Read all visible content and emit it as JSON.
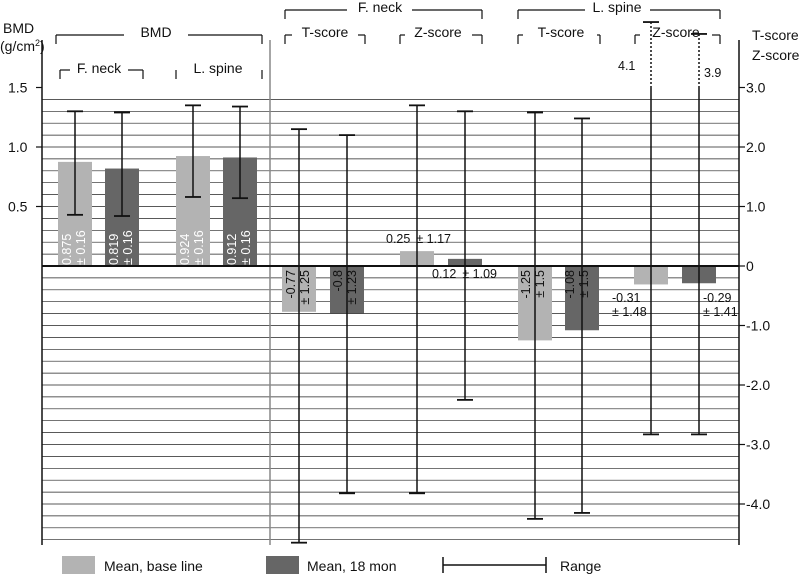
{
  "chart_data": {
    "type": "bar",
    "left_axis": {
      "label_lines": [
        "BMD",
        "(g/cm",
        "2",
        ")"
      ],
      "ticks": [
        0.5,
        1.0,
        1.5
      ],
      "tick_labels": [
        "0.5",
        "1.0",
        "1.5"
      ]
    },
    "right_axis": {
      "label_lines": [
        "T-score",
        "Z-score"
      ],
      "ticks": [
        3.0,
        2.0,
        1.0,
        0,
        -1.0,
        -2.0,
        -3.0,
        -4.0
      ],
      "tick_labels": [
        "3.0",
        "2.0",
        "1.0",
        "0",
        "-1.0",
        "-2.0",
        "-3.0",
        "-4.0"
      ]
    },
    "groups": {
      "bmd": "BMD",
      "f_neck": "F. neck",
      "l_spine": "L. spine",
      "t_score": "T-score",
      "z_score": "Z-score"
    },
    "legend": {
      "baseline": "Mean, base line",
      "m18": "Mean, 18 mon",
      "range": "Range"
    },
    "colors": {
      "baseline": "#b3b3b3",
      "m18": "#666666",
      "grid": "#222222"
    },
    "bars": [
      {
        "panel": "BMD",
        "site": "F. neck",
        "series": "base line",
        "value": 0.875,
        "sd": "± 0.16",
        "min": 0.43,
        "max": 1.3
      },
      {
        "panel": "BMD",
        "site": "F. neck",
        "series": "18 mon",
        "value": 0.819,
        "sd": "± 0.16",
        "min": 0.42,
        "max": 1.29
      },
      {
        "panel": "BMD",
        "site": "L. spine",
        "series": "base line",
        "value": 0.924,
        "sd": "± 0.16",
        "min": 0.58,
        "max": 1.35
      },
      {
        "panel": "BMD",
        "site": "L. spine",
        "series": "18 mon",
        "value": 0.912,
        "sd": "± 0.16",
        "min": 0.57,
        "max": 1.34
      },
      {
        "panel": "F. neck",
        "site": "T-score",
        "series": "base line",
        "value": -0.77,
        "sd": "± 1.25",
        "min": -4.65,
        "max": 2.3
      },
      {
        "panel": "F. neck",
        "site": "T-score",
        "series": "18 mon",
        "value": -0.8,
        "sd": "± 1.23",
        "min": -3.82,
        "max": 2.2
      },
      {
        "panel": "F. neck",
        "site": "Z-score",
        "series": "base line",
        "value": 0.25,
        "sd": "± 1.17",
        "min": -3.82,
        "max": 2.7
      },
      {
        "panel": "F. neck",
        "site": "Z-score",
        "series": "18 mon",
        "value": 0.12,
        "sd": "± 1.09",
        "min": -2.25,
        "max": 2.6
      },
      {
        "panel": "L. spine",
        "site": "T-score",
        "series": "base line",
        "value": -1.25,
        "sd": "± 1.5",
        "min": -4.25,
        "max": 2.58
      },
      {
        "panel": "L. spine",
        "site": "T-score",
        "series": "18 mon",
        "value": -1.08,
        "sd": "± 1.5",
        "min": -4.15,
        "max": 2.48
      },
      {
        "panel": "L. spine",
        "site": "Z-score",
        "series": "base line",
        "value": -0.31,
        "sd": "± 1.48",
        "min": -2.83,
        "max": 4.1,
        "max_label": "4.1"
      },
      {
        "panel": "L. spine",
        "site": "Z-score",
        "series": "18 mon",
        "value": -0.29,
        "sd": "± 1.41",
        "min": -2.83,
        "max": 3.9,
        "max_label": "3.9"
      }
    ],
    "value_labels": [
      {
        "value": "0.875",
        "sd": "± 0.16"
      },
      {
        "value": "0.819",
        "sd": "± 0.16"
      },
      {
        "value": "0.924",
        "sd": "± 0.16"
      },
      {
        "value": "0.912",
        "sd": "± 0.16"
      },
      {
        "value": "-0.77",
        "sd": "± 1.25"
      },
      {
        "value": "-0.8",
        "sd": "± 1.23"
      },
      {
        "value": "0.25",
        "sd": "± 1.17"
      },
      {
        "value": "0.12",
        "sd": "± 1.09"
      },
      {
        "value": "-1.25",
        "sd": "± 1.5"
      },
      {
        "value": "-1.08",
        "sd": "± 1.5"
      },
      {
        "value": "-0.31",
        "sd": "± 1.48"
      },
      {
        "value": "-0.29",
        "sd": "± 1.41"
      }
    ],
    "grid": true
  }
}
